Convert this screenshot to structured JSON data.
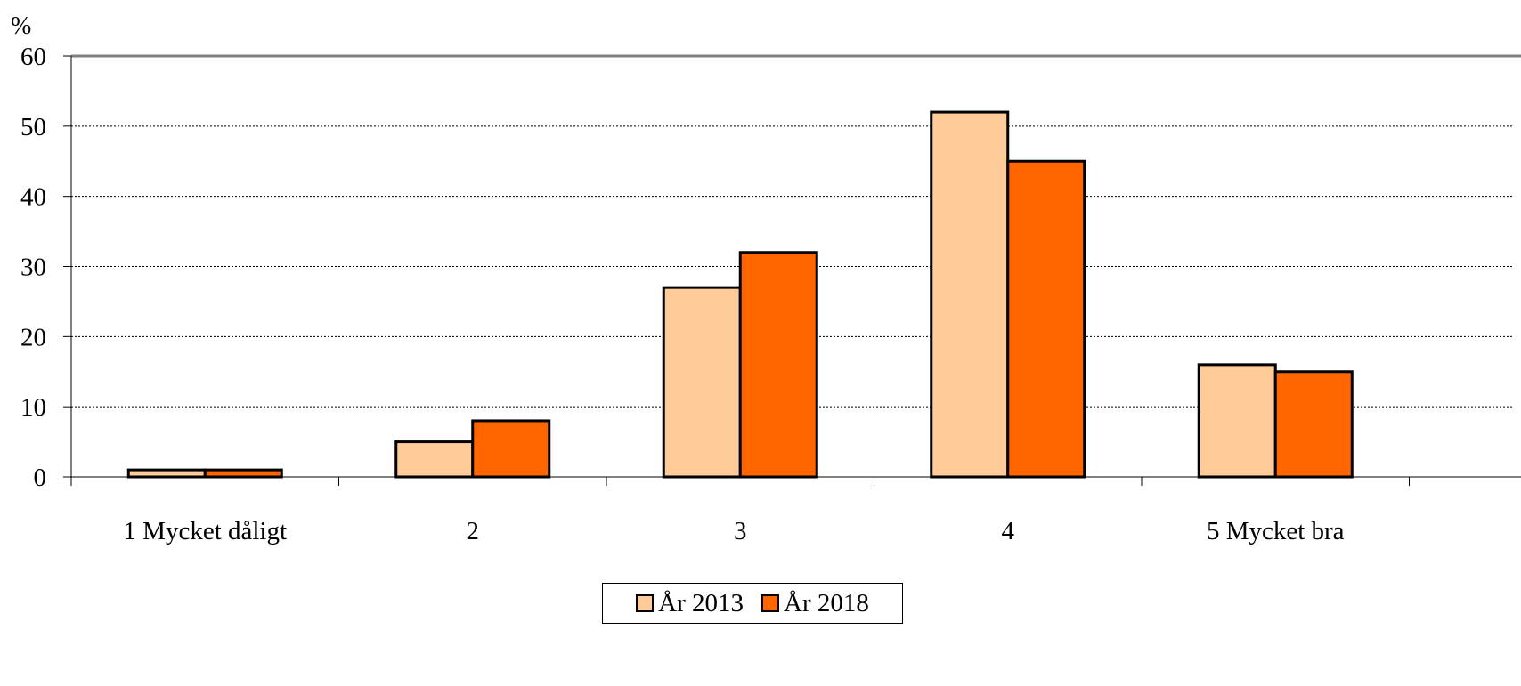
{
  "chart_data": {
    "type": "bar",
    "unit_label": "%",
    "categories": [
      "1 Mycket dåligt",
      "2",
      "3",
      "4",
      "5 Mycket bra"
    ],
    "series": [
      {
        "name": "År 2013",
        "color": "#FFCC99",
        "values": [
          1,
          5,
          27,
          52,
          16
        ]
      },
      {
        "name": "År 2018",
        "color": "#FF6600",
        "values": [
          1,
          8,
          32,
          45,
          15
        ]
      }
    ],
    "ylim": [
      0,
      60
    ],
    "yticks": [
      "0",
      "10",
      "20",
      "30",
      "40",
      "50",
      "60"
    ],
    "grid": true,
    "legend_position": "bottom"
  }
}
